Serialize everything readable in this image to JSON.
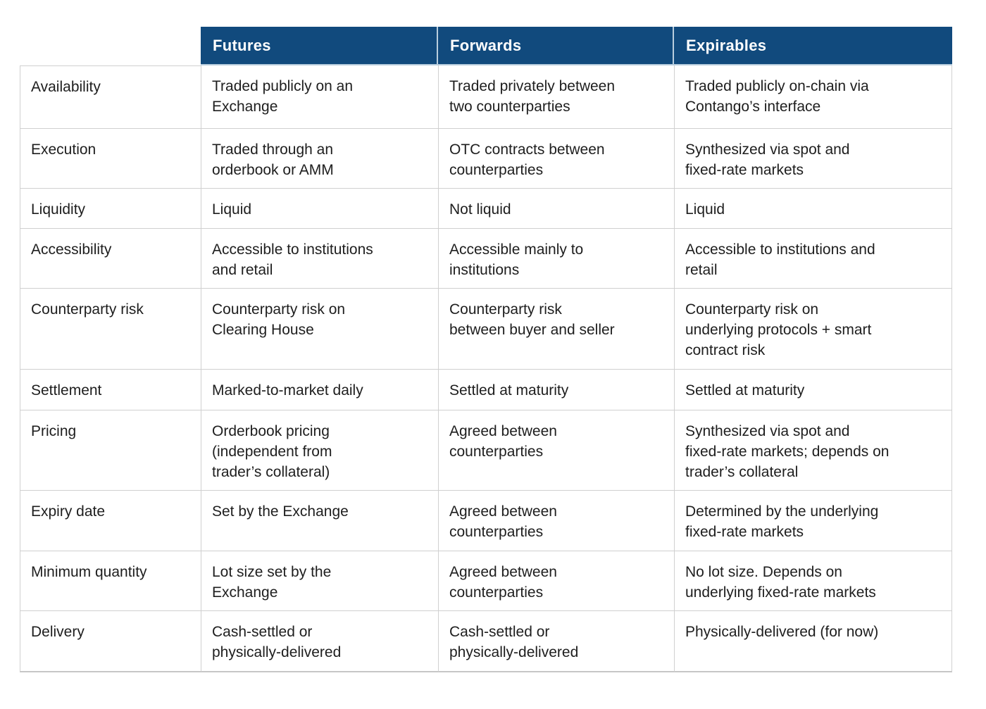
{
  "table": {
    "columns": [
      {
        "key": "label",
        "header": ""
      },
      {
        "key": "futures",
        "header": "Futures"
      },
      {
        "key": "forwards",
        "header": "Forwards"
      },
      {
        "key": "expirables",
        "header": "Expirables"
      }
    ],
    "rows": [
      {
        "label": "Availability",
        "futures": "Traded publicly on an\nExchange",
        "forwards": "Traded privately between\ntwo counterparties",
        "expirables": "Traded publicly on-chain via\nContango’s interface"
      },
      {
        "label": "Execution",
        "futures": "Traded through an\norderbook or AMM",
        "forwards": "OTC contracts between\ncounterparties",
        "expirables": "Synthesized via spot and\nfixed-rate markets"
      },
      {
        "label": "Liquidity",
        "futures": "Liquid",
        "forwards": "Not liquid",
        "expirables": "Liquid"
      },
      {
        "label": "Accessibility",
        "futures": "Accessible to institutions\nand retail",
        "forwards": "Accessible mainly to\ninstitutions",
        "expirables": "Accessible to institutions and\nretail"
      },
      {
        "label": "Counterparty risk",
        "futures": "Counterparty risk on\nClearing House",
        "forwards": "Counterparty risk\nbetween buyer and seller",
        "expirables": "Counterparty risk on\nunderlying protocols + smart\ncontract risk"
      },
      {
        "label": "Settlement",
        "futures": "Marked-to-market daily",
        "forwards": "Settled at maturity",
        "expirables": "Settled at maturity"
      },
      {
        "label": "Pricing",
        "futures": "Orderbook pricing\n(independent from\ntrader’s collateral)",
        "forwards": "Agreed between\ncounterparties",
        "expirables": "Synthesized via spot and\nfixed-rate markets; depends on\ntrader’s collateral"
      },
      {
        "label": "Expiry date",
        "futures": "Set by the Exchange",
        "forwards": "Agreed between\ncounterparties",
        "expirables": "Determined by the underlying\nfixed-rate markets"
      },
      {
        "label": "Minimum quantity",
        "futures": "Lot size set by the\nExchange",
        "forwards": "Agreed between\ncounterparties",
        "expirables": "No lot size. Depends on\nunderlying fixed-rate markets"
      },
      {
        "label": "Delivery",
        "futures": "Cash-settled or\nphysically-delivered",
        "forwards": "Cash-settled or\nphysically-delivered",
        "expirables": "Physically-delivered (for now)"
      }
    ],
    "colors": {
      "header_bg": "#114a7d",
      "header_text": "#ffffff",
      "header_divider": "#b9cede",
      "body_border": "#d0d0d0",
      "body_text": "#1e1e1e"
    }
  }
}
